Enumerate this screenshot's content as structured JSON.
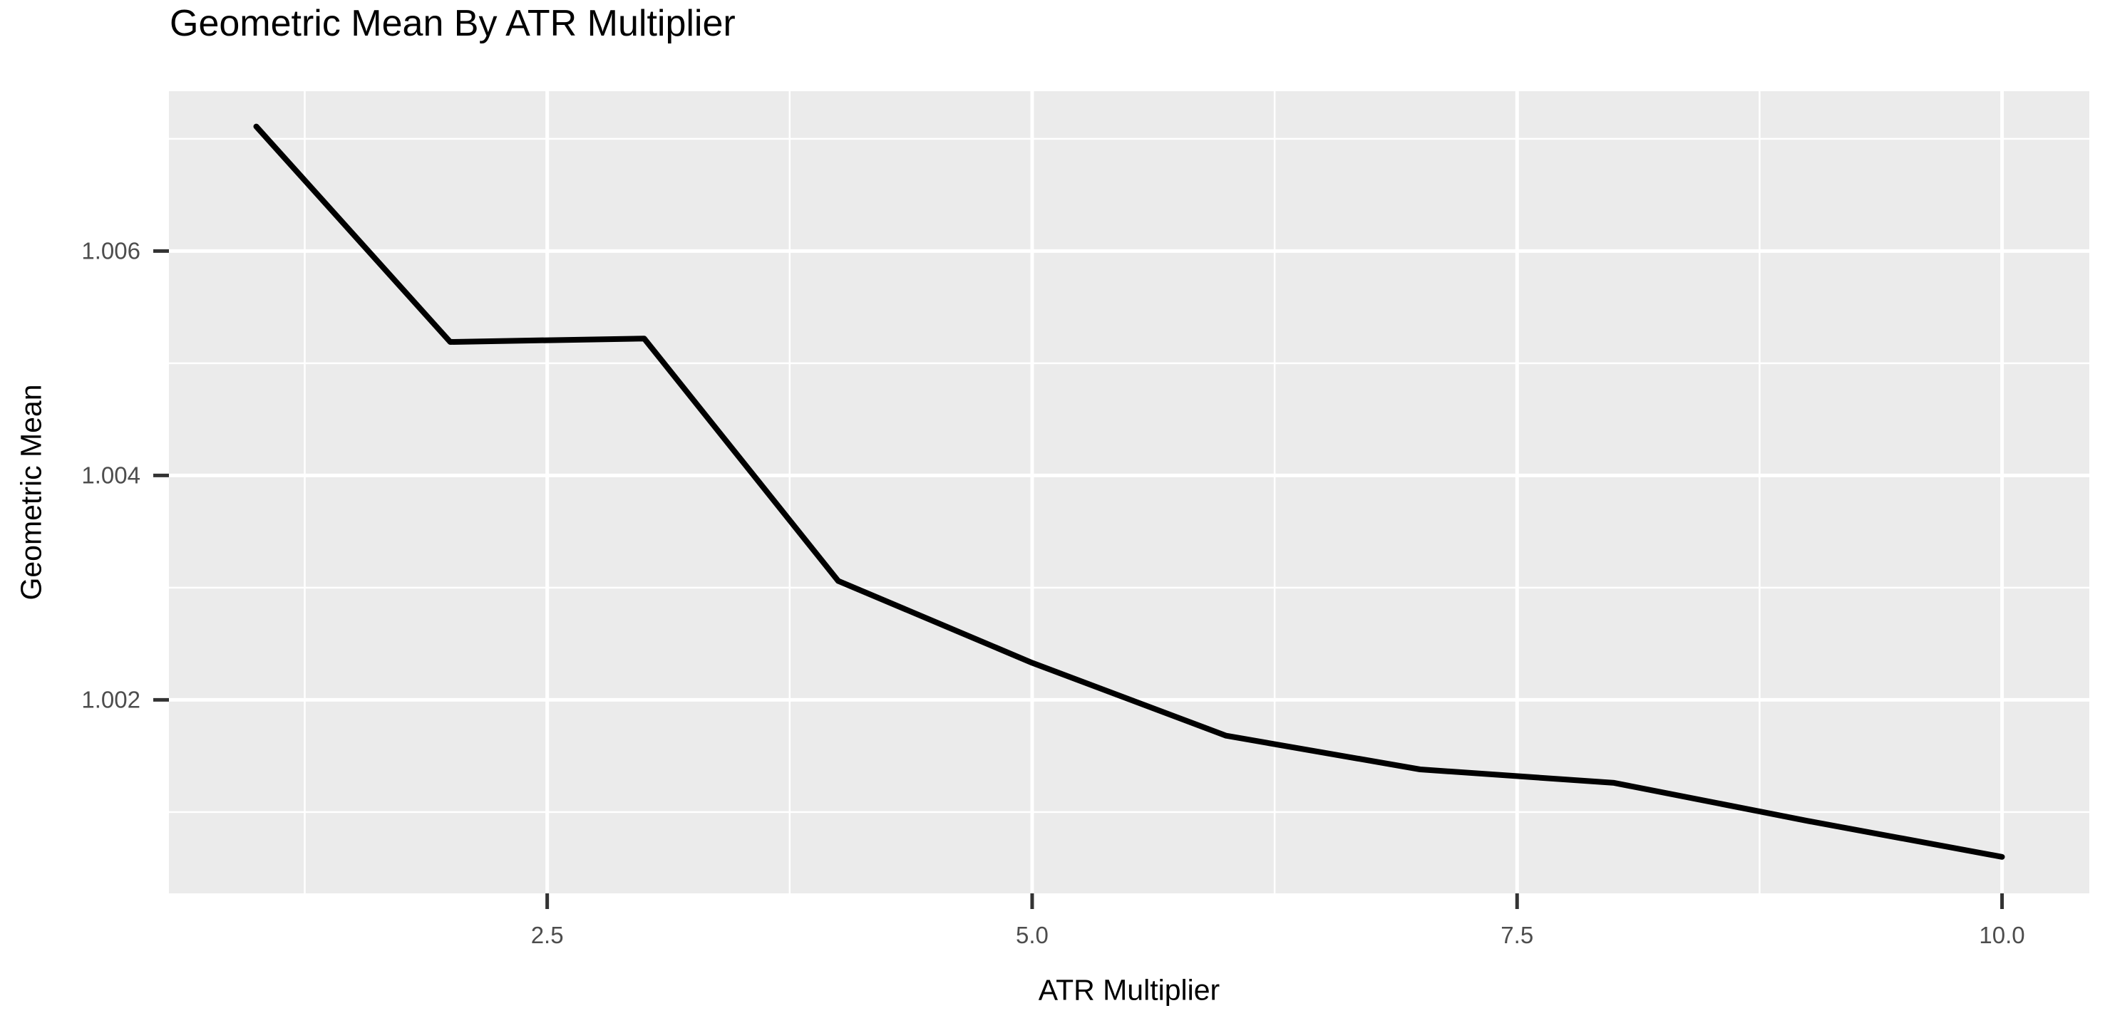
{
  "colors": {
    "figure_bg": "#FFFFFF",
    "panel_bg": "#EBEBEB",
    "gridline": "#FFFFFF",
    "data_line": "#000000",
    "tick_mark": "#333333",
    "tick_label": "#4D4D4D",
    "title_text": "#000000"
  },
  "chart_data": {
    "type": "line",
    "title": "Geometric Mean By ATR Multiplier",
    "xlabel": "ATR Multiplier",
    "ylabel": "Geometric Mean",
    "x": [
      1,
      2,
      3,
      4,
      5,
      6,
      7,
      8,
      9,
      10
    ],
    "y": [
      1.00711,
      1.00519,
      1.00522,
      1.00306,
      1.00233,
      1.00168,
      1.00138,
      1.00126,
      1.00092,
      1.0006
    ],
    "xlim": [
      0.55,
      10.45
    ],
    "ylim": [
      1.000275,
      1.007425
    ],
    "x_ticks": [
      {
        "value": 2.5,
        "label": "2.5"
      },
      {
        "value": 5.0,
        "label": "5.0"
      },
      {
        "value": 7.5,
        "label": "7.5"
      },
      {
        "value": 10.0,
        "label": "10.0"
      }
    ],
    "y_ticks": [
      {
        "value": 1.002,
        "label": "1.002"
      },
      {
        "value": 1.004,
        "label": "1.004"
      },
      {
        "value": 1.006,
        "label": "1.006"
      }
    ],
    "x_minor_gridlines": [
      1.25,
      3.75,
      6.25,
      8.75
    ],
    "y_minor_gridlines": [
      1.001,
      1.003,
      1.005,
      1.007
    ],
    "grid": "major-and-minor",
    "legend": "none",
    "theme": "ggplot2-grey"
  }
}
